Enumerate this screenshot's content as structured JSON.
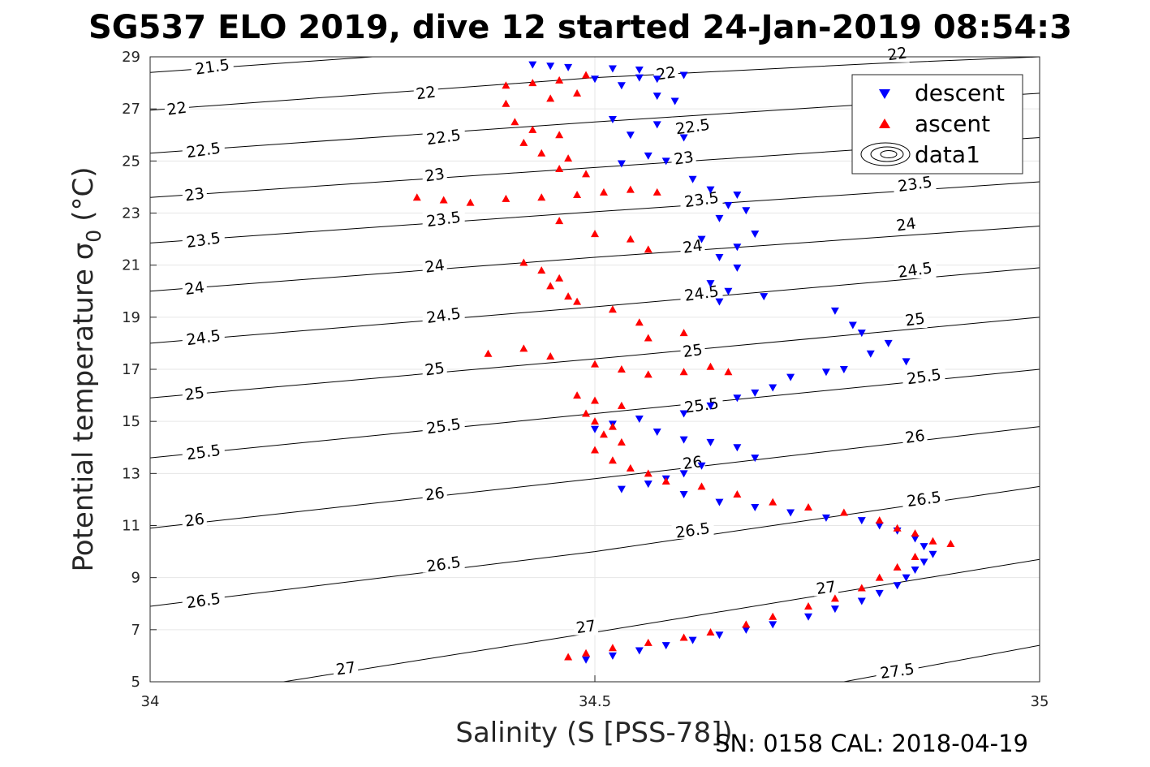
{
  "chart_data": {
    "type": "scatter",
    "title": "SG537 ELO 2019, dive 12 started 24-Jan-2019 08:54:3",
    "xlabel": "Salinity (S [PSS-78])",
    "ylabel_main": "Potential temperature σ",
    "ylabel_sub": "0",
    "ylabel_unit": "(°C)",
    "footer": "SN: 0158  CAL: 2018-04-19",
    "xlim": [
      34,
      35
    ],
    "ylim": [
      5,
      29
    ],
    "x_ticks": [
      "34",
      "34.5",
      "35"
    ],
    "y_ticks": [
      "5",
      "7",
      "9",
      "11",
      "13",
      "15",
      "17",
      "19",
      "21",
      "23",
      "25",
      "27",
      "29"
    ],
    "grid": true,
    "legend_position": "top-right",
    "legend": [
      {
        "label": "descent",
        "marker": "triangle-down",
        "color": "#0000ff"
      },
      {
        "label": "ascent",
        "marker": "triangle-up",
        "color": "#ff0000"
      },
      {
        "label": "data1",
        "marker": "contour",
        "color": "#000000"
      }
    ],
    "contours": [
      {
        "level": "21.5",
        "points": [
          [
            34.0,
            28.4
          ],
          [
            34.25,
            29.0
          ]
        ],
        "labels": [
          [
            34.07,
            28.6
          ]
        ]
      },
      {
        "level": "22",
        "points": [
          [
            34.0,
            26.95
          ],
          [
            34.5,
            28.2
          ],
          [
            34.82,
            28.75
          ],
          [
            35.0,
            29.0
          ]
        ],
        "labels": [
          [
            34.03,
            27.0
          ],
          [
            34.31,
            27.6
          ],
          [
            34.58,
            28.35
          ],
          [
            34.84,
            29.1
          ]
        ]
      },
      {
        "level": "22.5",
        "points": [
          [
            34.0,
            25.3
          ],
          [
            34.5,
            26.5
          ],
          [
            35.0,
            27.6
          ]
        ],
        "labels": [
          [
            34.06,
            25.4
          ],
          [
            34.33,
            25.9
          ],
          [
            34.61,
            26.3
          ]
        ]
      },
      {
        "level": "23",
        "points": [
          [
            34.0,
            23.6
          ],
          [
            34.5,
            24.75
          ],
          [
            35.0,
            25.9
          ]
        ],
        "labels": [
          [
            34.05,
            23.7
          ],
          [
            34.32,
            24.45
          ],
          [
            34.6,
            25.1
          ]
        ]
      },
      {
        "level": "23.5",
        "points": [
          [
            34.0,
            21.85
          ],
          [
            34.5,
            23.05
          ],
          [
            35.0,
            24.2
          ]
        ],
        "labels": [
          [
            34.06,
            21.95
          ],
          [
            34.33,
            22.75
          ],
          [
            34.62,
            23.5
          ],
          [
            34.86,
            24.1
          ]
        ]
      },
      {
        "level": "24",
        "points": [
          [
            34.0,
            20.0
          ],
          [
            34.5,
            21.3
          ],
          [
            35.0,
            22.5
          ]
        ],
        "labels": [
          [
            34.05,
            20.1
          ],
          [
            34.32,
            20.95
          ],
          [
            34.61,
            21.7
          ],
          [
            34.85,
            22.55
          ]
        ]
      },
      {
        "level": "24.5",
        "points": [
          [
            34.0,
            18.0
          ],
          [
            34.5,
            19.4
          ],
          [
            35.0,
            20.9
          ]
        ],
        "labels": [
          [
            34.06,
            18.2
          ],
          [
            34.33,
            19.05
          ],
          [
            34.62,
            19.9
          ],
          [
            34.86,
            20.8
          ]
        ]
      },
      {
        "level": "25",
        "points": [
          [
            34.0,
            15.9
          ],
          [
            34.5,
            17.4
          ],
          [
            35.0,
            19.0
          ]
        ],
        "labels": [
          [
            34.05,
            16.05
          ],
          [
            34.32,
            17.0
          ],
          [
            34.61,
            17.7
          ],
          [
            34.86,
            18.9
          ]
        ]
      },
      {
        "level": "25.5",
        "points": [
          [
            34.0,
            13.6
          ],
          [
            34.5,
            15.3
          ],
          [
            35.0,
            17.0
          ]
        ],
        "labels": [
          [
            34.06,
            13.8
          ],
          [
            34.33,
            14.8
          ],
          [
            34.62,
            15.6
          ],
          [
            34.87,
            16.7
          ]
        ]
      },
      {
        "level": "26",
        "points": [
          [
            34.0,
            10.9
          ],
          [
            34.5,
            12.8
          ],
          [
            35.0,
            14.8
          ]
        ],
        "labels": [
          [
            34.05,
            11.2
          ],
          [
            34.32,
            12.2
          ],
          [
            34.61,
            13.4
          ],
          [
            34.86,
            14.4
          ]
        ]
      },
      {
        "level": "26.5",
        "points": [
          [
            34.0,
            7.9
          ],
          [
            34.5,
            10.0
          ],
          [
            35.0,
            12.5
          ]
        ],
        "labels": [
          [
            34.06,
            8.1
          ],
          [
            34.33,
            9.5
          ],
          [
            34.61,
            10.8
          ],
          [
            34.87,
            12.0
          ]
        ]
      },
      {
        "level": "27",
        "points": [
          [
            34.15,
            5.0
          ],
          [
            34.5,
            6.9
          ],
          [
            35.0,
            9.7
          ]
        ],
        "labels": [
          [
            34.22,
            5.5
          ],
          [
            34.49,
            7.1
          ],
          [
            34.76,
            8.6
          ]
        ]
      },
      {
        "level": "27.5",
        "points": [
          [
            34.78,
            5.0
          ],
          [
            35.0,
            6.4
          ]
        ],
        "labels": [
          [
            34.84,
            5.4
          ]
        ]
      }
    ],
    "series": [
      {
        "name": "descent",
        "marker": "triangle-down",
        "color": "#0000ff",
        "points": [
          [
            34.43,
            28.7
          ],
          [
            34.45,
            28.65
          ],
          [
            34.47,
            28.6
          ],
          [
            34.52,
            28.55
          ],
          [
            34.55,
            28.5
          ],
          [
            34.5,
            28.15
          ],
          [
            34.55,
            28.2
          ],
          [
            34.57,
            28.15
          ],
          [
            34.6,
            28.3
          ],
          [
            34.53,
            27.9
          ],
          [
            34.57,
            27.5
          ],
          [
            34.59,
            27.3
          ],
          [
            34.52,
            26.6
          ],
          [
            34.57,
            26.4
          ],
          [
            34.54,
            26.0
          ],
          [
            34.6,
            25.9
          ],
          [
            34.56,
            25.2
          ],
          [
            34.58,
            25.0
          ],
          [
            34.53,
            24.9
          ],
          [
            34.61,
            24.3
          ],
          [
            34.63,
            23.9
          ],
          [
            34.66,
            23.7
          ],
          [
            34.65,
            23.3
          ],
          [
            34.67,
            23.1
          ],
          [
            34.64,
            22.8
          ],
          [
            34.68,
            22.2
          ],
          [
            34.62,
            22.0
          ],
          [
            34.66,
            21.7
          ],
          [
            34.64,
            21.3
          ],
          [
            34.66,
            20.9
          ],
          [
            34.63,
            20.3
          ],
          [
            34.65,
            20.0
          ],
          [
            34.64,
            19.6
          ],
          [
            34.69,
            19.8
          ],
          [
            34.77,
            19.25
          ],
          [
            34.79,
            18.7
          ],
          [
            34.8,
            18.4
          ],
          [
            34.83,
            18.0
          ],
          [
            34.81,
            17.6
          ],
          [
            34.85,
            17.3
          ],
          [
            34.78,
            17.0
          ],
          [
            34.76,
            16.9
          ],
          [
            34.72,
            16.7
          ],
          [
            34.7,
            16.3
          ],
          [
            34.68,
            16.1
          ],
          [
            34.66,
            15.9
          ],
          [
            34.63,
            15.6
          ],
          [
            34.6,
            15.3
          ],
          [
            34.55,
            15.1
          ],
          [
            34.52,
            14.9
          ],
          [
            34.5,
            14.7
          ],
          [
            34.57,
            14.6
          ],
          [
            34.6,
            14.3
          ],
          [
            34.63,
            14.2
          ],
          [
            34.66,
            14.0
          ],
          [
            34.68,
            13.6
          ],
          [
            34.62,
            13.3
          ],
          [
            34.6,
            13.0
          ],
          [
            34.58,
            12.8
          ],
          [
            34.56,
            12.6
          ],
          [
            34.53,
            12.4
          ],
          [
            34.6,
            12.2
          ],
          [
            34.64,
            11.9
          ],
          [
            34.68,
            11.7
          ],
          [
            34.72,
            11.5
          ],
          [
            34.76,
            11.3
          ],
          [
            34.8,
            11.2
          ],
          [
            34.82,
            11.0
          ],
          [
            34.84,
            10.8
          ],
          [
            34.86,
            10.5
          ],
          [
            34.87,
            10.2
          ],
          [
            34.88,
            9.9
          ],
          [
            34.87,
            9.6
          ],
          [
            34.86,
            9.3
          ],
          [
            34.85,
            9.0
          ],
          [
            34.84,
            8.7
          ],
          [
            34.82,
            8.4
          ],
          [
            34.8,
            8.1
          ],
          [
            34.77,
            7.8
          ],
          [
            34.74,
            7.5
          ],
          [
            34.7,
            7.2
          ],
          [
            34.67,
            7.0
          ],
          [
            34.64,
            6.8
          ],
          [
            34.61,
            6.6
          ],
          [
            34.58,
            6.4
          ],
          [
            34.55,
            6.2
          ],
          [
            34.52,
            6.0
          ],
          [
            34.49,
            5.85
          ]
        ]
      },
      {
        "name": "ascent",
        "marker": "triangle-up",
        "color": "#ff0000",
        "points": [
          [
            34.4,
            27.9
          ],
          [
            34.43,
            28.0
          ],
          [
            34.46,
            28.1
          ],
          [
            34.49,
            28.3
          ],
          [
            34.4,
            27.2
          ],
          [
            34.45,
            27.4
          ],
          [
            34.48,
            27.6
          ],
          [
            34.41,
            26.5
          ],
          [
            34.43,
            26.2
          ],
          [
            34.46,
            26.0
          ],
          [
            34.42,
            25.7
          ],
          [
            34.44,
            25.3
          ],
          [
            34.47,
            25.1
          ],
          [
            34.46,
            24.7
          ],
          [
            34.49,
            24.5
          ],
          [
            34.3,
            23.6
          ],
          [
            34.33,
            23.5
          ],
          [
            34.36,
            23.4
          ],
          [
            34.4,
            23.55
          ],
          [
            34.44,
            23.6
          ],
          [
            34.48,
            23.7
          ],
          [
            34.51,
            23.8
          ],
          [
            34.54,
            23.9
          ],
          [
            34.57,
            23.8
          ],
          [
            34.46,
            22.7
          ],
          [
            34.5,
            22.2
          ],
          [
            34.54,
            22.0
          ],
          [
            34.56,
            21.6
          ],
          [
            34.42,
            21.1
          ],
          [
            34.44,
            20.8
          ],
          [
            34.46,
            20.5
          ],
          [
            34.45,
            20.2
          ],
          [
            34.47,
            19.8
          ],
          [
            34.48,
            19.6
          ],
          [
            34.52,
            19.3
          ],
          [
            34.55,
            18.8
          ],
          [
            34.6,
            18.4
          ],
          [
            34.56,
            18.2
          ],
          [
            34.38,
            17.6
          ],
          [
            34.42,
            17.8
          ],
          [
            34.45,
            17.5
          ],
          [
            34.5,
            17.2
          ],
          [
            34.53,
            17.0
          ],
          [
            34.56,
            16.8
          ],
          [
            34.6,
            16.9
          ],
          [
            34.63,
            17.1
          ],
          [
            34.65,
            16.9
          ],
          [
            34.48,
            16.0
          ],
          [
            34.5,
            15.8
          ],
          [
            34.53,
            15.6
          ],
          [
            34.49,
            15.3
          ],
          [
            34.5,
            15.0
          ],
          [
            34.52,
            14.8
          ],
          [
            34.51,
            14.5
          ],
          [
            34.53,
            14.2
          ],
          [
            34.5,
            13.9
          ],
          [
            34.52,
            13.5
          ],
          [
            34.54,
            13.2
          ],
          [
            34.56,
            13.0
          ],
          [
            34.58,
            12.7
          ],
          [
            34.62,
            12.5
          ],
          [
            34.66,
            12.2
          ],
          [
            34.7,
            11.9
          ],
          [
            34.74,
            11.7
          ],
          [
            34.78,
            11.5
          ],
          [
            34.82,
            11.2
          ],
          [
            34.84,
            10.9
          ],
          [
            34.86,
            10.7
          ],
          [
            34.88,
            10.4
          ],
          [
            34.9,
            10.3
          ],
          [
            34.86,
            9.8
          ],
          [
            34.84,
            9.4
          ],
          [
            34.82,
            9.0
          ],
          [
            34.8,
            8.6
          ],
          [
            34.77,
            8.2
          ],
          [
            34.74,
            7.9
          ],
          [
            34.7,
            7.5
          ],
          [
            34.67,
            7.2
          ],
          [
            34.63,
            6.9
          ],
          [
            34.6,
            6.7
          ],
          [
            34.56,
            6.5
          ],
          [
            34.52,
            6.3
          ],
          [
            34.49,
            6.1
          ],
          [
            34.47,
            5.95
          ]
        ]
      }
    ]
  }
}
